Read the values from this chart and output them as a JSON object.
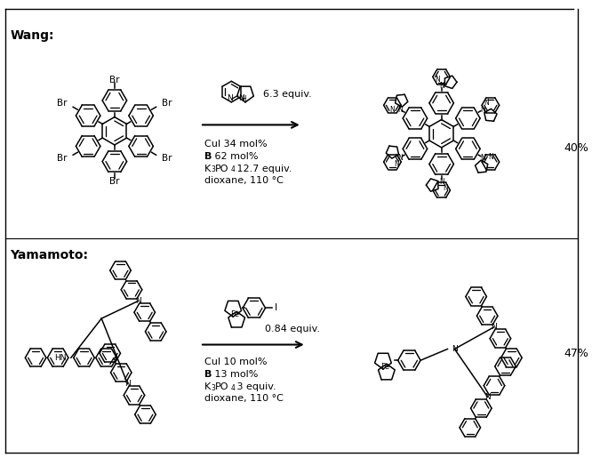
{
  "background_color": "#ffffff",
  "wang_label": "Wang:",
  "yamamoto_label": "Yamamoto:",
  "wang_reagent": "6.3 equiv.",
  "wang_conditions": [
    "CuI 34 mol%",
    "B 62 mol%",
    "K₃PO₄ 12.7 equiv.",
    "dioxane, 110 °C"
  ],
  "wang_yield": "40%",
  "yamamoto_reagent": "0.84 equiv.",
  "yamamoto_conditions": [
    "CuI 10 mol%",
    "B 13 mol%",
    "K₃PO₄ 3 equiv.",
    "dioxane, 110 °C"
  ],
  "yamamoto_yield": "47%",
  "figsize": [
    6.66,
    5.24
  ],
  "dpi": 100
}
